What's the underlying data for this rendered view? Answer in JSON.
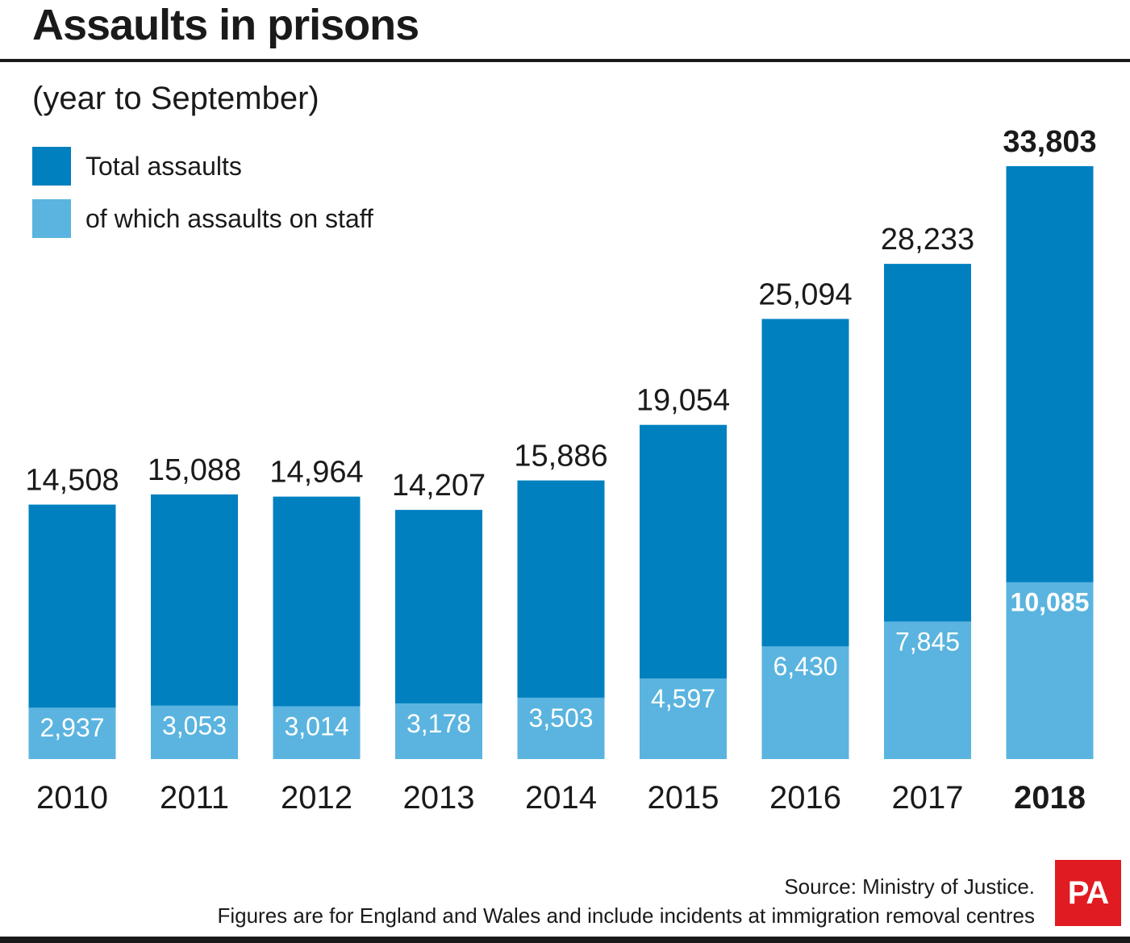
{
  "title": "Assaults in prisons",
  "subtitle": "(year to September)",
  "legend": [
    {
      "label": "Total assaults",
      "color": "#0080bf"
    },
    {
      "label": "of which assaults on staff",
      "color": "#5ab4df"
    }
  ],
  "footer": {
    "source": "Source: Ministry of Justice.",
    "note": "Figures are for England and Wales and include incidents at immigration removal centres",
    "logo_text": "PA",
    "logo_color": "#e11b22"
  },
  "chart_data": {
    "type": "bar",
    "categories": [
      "2010",
      "2011",
      "2012",
      "2013",
      "2014",
      "2015",
      "2016",
      "2017",
      "2018"
    ],
    "series": [
      {
        "name": "Total assaults",
        "color": "#0080bf",
        "values": [
          14508,
          15088,
          14964,
          14207,
          15886,
          19054,
          25094,
          28233,
          33803
        ],
        "labels": [
          "14,508",
          "15,088",
          "14,964",
          "14,207",
          "15,886",
          "19,054",
          "25,094",
          "28,233",
          "33,803"
        ]
      },
      {
        "name": "of which assaults on staff",
        "color": "#5ab4df",
        "values": [
          2937,
          3053,
          3014,
          3178,
          3503,
          4597,
          6430,
          7845,
          10085
        ],
        "labels": [
          "2,937",
          "3,053",
          "3,014",
          "3,178",
          "3,503",
          "4,597",
          "6,430",
          "7,845",
          "10,085"
        ]
      }
    ],
    "highlight_category": "2018",
    "ylim": [
      0,
      33803
    ],
    "grid": false
  }
}
